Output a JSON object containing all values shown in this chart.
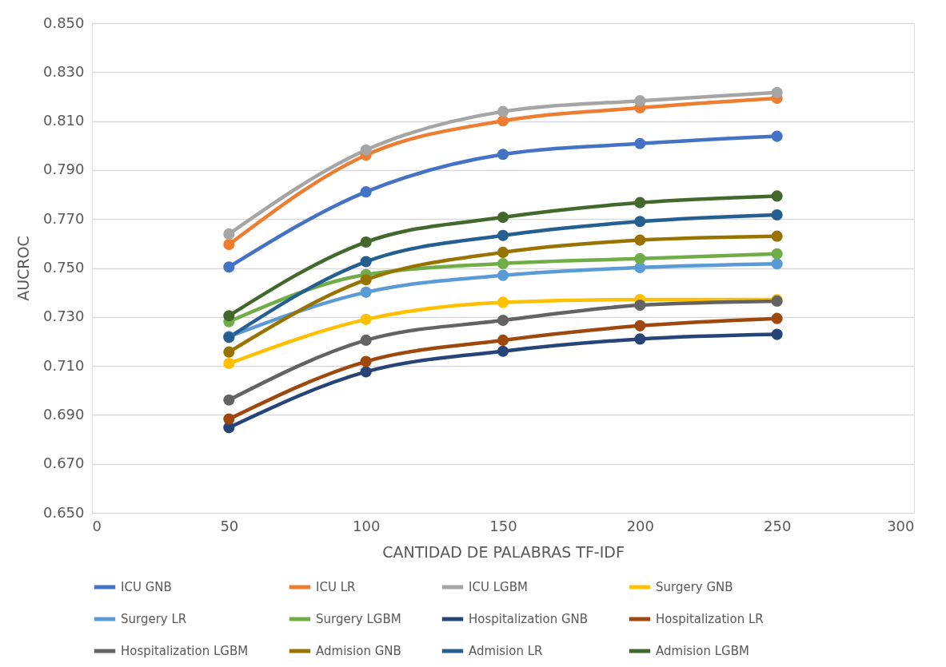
{
  "chart_data": {
    "type": "line",
    "xlabel": "CANTIDAD DE PALABRAS TF-IDF",
    "ylabel": "AUCROC",
    "x": [
      50,
      100,
      150,
      200,
      250
    ],
    "series": [
      {
        "name": "ICU GNB",
        "color": "#4472c4",
        "values": [
          0.7504,
          0.7811,
          0.7964,
          0.8008,
          0.8038
        ]
      },
      {
        "name": "ICU LR",
        "color": "#ed7d31",
        "values": [
          0.7596,
          0.7961,
          0.8101,
          0.8154,
          0.8193
        ]
      },
      {
        "name": "ICU LGBM",
        "color": "#a5a5a5",
        "values": [
          0.7639,
          0.7982,
          0.8139,
          0.8183,
          0.8217
        ]
      },
      {
        "name": "Surgery GNB",
        "color": "#ffc000",
        "values": [
          0.711,
          0.729,
          0.736,
          0.7371,
          0.7371
        ]
      },
      {
        "name": "Surgery LR",
        "color": "#5b9bd5",
        "values": [
          0.722,
          0.7401,
          0.747,
          0.7502,
          0.7517
        ]
      },
      {
        "name": "Surgery LGBM",
        "color": "#70ad47",
        "values": [
          0.7281,
          0.7473,
          0.7518,
          0.7538,
          0.7558
        ]
      },
      {
        "name": "Hospitalization GNB",
        "color": "#264478",
        "values": [
          0.6848,
          0.7076,
          0.716,
          0.721,
          0.7229
        ]
      },
      {
        "name": "Hospitalization LR",
        "color": "#9e480e",
        "values": [
          0.6883,
          0.7118,
          0.7205,
          0.7264,
          0.7294
        ]
      },
      {
        "name": "Hospitalization LGBM",
        "color": "#636363",
        "values": [
          0.6961,
          0.7205,
          0.7286,
          0.7348,
          0.7365
        ]
      },
      {
        "name": "Admision GNB",
        "color": "#997300",
        "values": [
          0.7157,
          0.7452,
          0.7564,
          0.7614,
          0.763
        ]
      },
      {
        "name": "Admision LR",
        "color": "#255e91",
        "values": [
          0.7217,
          0.7526,
          0.7633,
          0.769,
          0.7717
        ]
      },
      {
        "name": "Admision LGBM",
        "color": "#43682b",
        "values": [
          0.7305,
          0.7606,
          0.7707,
          0.7767,
          0.7794
        ]
      }
    ],
    "xlim": [
      0,
      300
    ],
    "xticks": [
      0,
      50,
      100,
      150,
      200,
      250,
      300
    ],
    "ylim": [
      0.65,
      0.85
    ],
    "yticks": [
      {
        "value": 0.65,
        "label": "0.650"
      },
      {
        "value": 0.67,
        "label": "0.670"
      },
      {
        "value": 0.69,
        "label": "0.690"
      },
      {
        "value": 0.71,
        "label": "0.710"
      },
      {
        "value": 0.73,
        "label": "0.730"
      },
      {
        "value": 0.75,
        "label": "0.750"
      },
      {
        "value": 0.77,
        "label": "0.770"
      },
      {
        "value": 0.79,
        "label": "0.790"
      },
      {
        "value": 0.81,
        "label": "0.810"
      },
      {
        "value": 0.83,
        "label": "0.830"
      },
      {
        "value": 0.85,
        "label": "0.850"
      }
    ],
    "grid": "y",
    "legend": "bottom",
    "marker": "circle",
    "line_style": "solid"
  }
}
